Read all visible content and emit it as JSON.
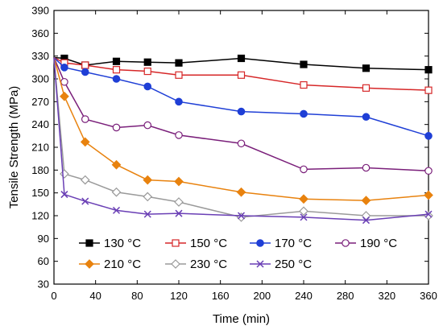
{
  "chart_data": {
    "type": "line",
    "xlabel": "Time (min)",
    "ylabel": "Tensile Strength (MPa)",
    "xlim": [
      0,
      360
    ],
    "ylim": [
      30,
      390
    ],
    "xticks": [
      0,
      40,
      80,
      120,
      160,
      200,
      240,
      280,
      320,
      360
    ],
    "yticks": [
      30,
      60,
      90,
      120,
      150,
      180,
      210,
      240,
      270,
      300,
      330,
      360,
      390
    ],
    "grid": false,
    "legend_position": "bottom-inside",
    "series": [
      {
        "name": "130 °C",
        "color": "#000000",
        "marker": "filled-square",
        "x": [
          0,
          10,
          30,
          60,
          90,
          120,
          180,
          240,
          300,
          360
        ],
        "y": [
          328,
          327,
          318,
          323,
          322,
          321,
          327,
          319,
          314,
          312
        ]
      },
      {
        "name": "150 °C",
        "color": "#d62728",
        "marker": "open-square",
        "x": [
          0,
          10,
          30,
          60,
          90,
          120,
          180,
          240,
          300,
          360
        ],
        "y": [
          328,
          321,
          318,
          312,
          310,
          305,
          305,
          292,
          288,
          285
        ]
      },
      {
        "name": "170 °C",
        "color": "#1f3fd6",
        "marker": "filled-circle",
        "x": [
          0,
          10,
          30,
          60,
          90,
          120,
          180,
          240,
          300,
          360
        ],
        "y": [
          328,
          315,
          309,
          300,
          290,
          270,
          257,
          254,
          250,
          225
        ]
      },
      {
        "name": "190 °C",
        "color": "#7a1f7a",
        "marker": "open-circle",
        "x": [
          0,
          10,
          30,
          60,
          90,
          120,
          180,
          240,
          300,
          360
        ],
        "y": [
          328,
          296,
          247,
          236,
          239,
          226,
          215,
          181,
          183,
          179
        ]
      },
      {
        "name": "210 °C",
        "color": "#e8820e",
        "marker": "filled-diamond",
        "x": [
          0,
          10,
          30,
          60,
          90,
          120,
          180,
          240,
          300,
          360
        ],
        "y": [
          328,
          277,
          217,
          187,
          167,
          165,
          151,
          142,
          140,
          147
        ]
      },
      {
        "name": "230 °C",
        "color": "#9a9a9a",
        "marker": "open-diamond",
        "x": [
          0,
          10,
          30,
          60,
          90,
          120,
          180,
          240,
          300,
          360
        ],
        "y": [
          328,
          175,
          167,
          151,
          145,
          138,
          118,
          126,
          120,
          120
        ]
      },
      {
        "name": "250 °C",
        "color": "#6a3fb5",
        "marker": "x",
        "x": [
          0,
          10,
          30,
          60,
          90,
          120,
          180,
          240,
          300,
          360
        ],
        "y": [
          328,
          148,
          139,
          127,
          122,
          123,
          120,
          118,
          114,
          122
        ]
      }
    ]
  }
}
